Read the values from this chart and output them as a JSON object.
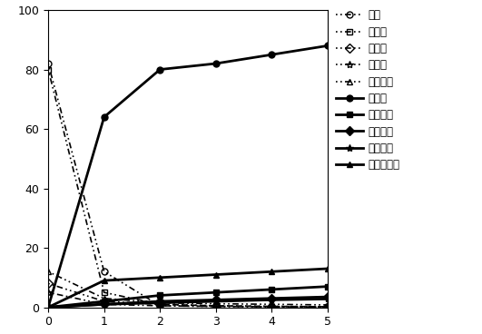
{
  "x": [
    0,
    1,
    2,
    3,
    4,
    5
  ],
  "series_order": [
    "xylose_sugar",
    "glucose_sugar",
    "mannose_sugar",
    "galactose_sugar",
    "arabinose_sugar",
    "xylose_acid",
    "glucose_acid",
    "mannose_acid",
    "galactose_acid",
    "arabinose_acid"
  ],
  "series": {
    "xylose_sugar": {
      "label": "木糖",
      "values": [
        82,
        12,
        0.5,
        0.3,
        0.2,
        0.1
      ],
      "linestyle": "dotdash",
      "marker": "o",
      "linewidth": 1.2,
      "fillstyle": "none",
      "markersize": 5
    },
    "glucose_sugar": {
      "label": "葡萄糖",
      "values": [
        80,
        5,
        1,
        0.5,
        0.3,
        0.2
      ],
      "linestyle": "dotdash",
      "marker": "s",
      "linewidth": 1.2,
      "fillstyle": "none",
      "markersize": 5
    },
    "mannose_sugar": {
      "label": "甘露糖",
      "values": [
        8,
        2,
        1,
        0.5,
        0.3,
        0.2
      ],
      "linestyle": "dotdash",
      "marker": "D",
      "linewidth": 1.2,
      "fillstyle": "none",
      "markersize": 5
    },
    "galactose_sugar": {
      "label": "半乳糖",
      "values": [
        5,
        1,
        0.5,
        0.3,
        0.2,
        0.1
      ],
      "linestyle": "dotdash",
      "marker": "*",
      "linewidth": 1.2,
      "fillstyle": "none",
      "markersize": 6
    },
    "arabinose_sugar": {
      "label": "阿拉伯糖",
      "values": [
        12,
        3,
        1.5,
        1.2,
        1.0,
        0.8
      ],
      "linestyle": "dotdash",
      "marker": "^",
      "linewidth": 1.2,
      "fillstyle": "none",
      "markersize": 5
    },
    "xylose_acid": {
      "label": "木糖酸",
      "values": [
        0,
        64,
        80,
        82,
        85,
        88
      ],
      "linestyle": "solid",
      "marker": "o",
      "linewidth": 2.0,
      "fillstyle": "full",
      "markersize": 5
    },
    "glucose_acid": {
      "label": "葡萄糖酸",
      "values": [
        0,
        2,
        4,
        5,
        6,
        7
      ],
      "linestyle": "solid",
      "marker": "s",
      "linewidth": 2.0,
      "fillstyle": "full",
      "markersize": 5
    },
    "mannose_acid": {
      "label": "甘露糖酸",
      "values": [
        0,
        1,
        2,
        2.5,
        3,
        3.5
      ],
      "linestyle": "solid",
      "marker": "D",
      "linewidth": 2.0,
      "fillstyle": "full",
      "markersize": 5
    },
    "galactose_acid": {
      "label": "半乳糖酸",
      "values": [
        0,
        1,
        1.5,
        2,
        2.5,
        2.8
      ],
      "linestyle": "solid",
      "marker": "*",
      "linewidth": 2.0,
      "fillstyle": "full",
      "markersize": 6
    },
    "arabinose_acid": {
      "label": "阿拉伯糖酸",
      "values": [
        0,
        9,
        10,
        11,
        12,
        13
      ],
      "linestyle": "solid",
      "marker": "^",
      "linewidth": 2.0,
      "fillstyle": "full",
      "markersize": 5
    }
  },
  "xlim": [
    0,
    5
  ],
  "ylim": [
    0,
    100
  ],
  "yticks": [
    0,
    20,
    40,
    60,
    80,
    100
  ],
  "xticks": [
    0,
    1,
    2,
    3,
    4,
    5
  ],
  "background_color": "#ffffff",
  "legend_fontsize": 8.5
}
